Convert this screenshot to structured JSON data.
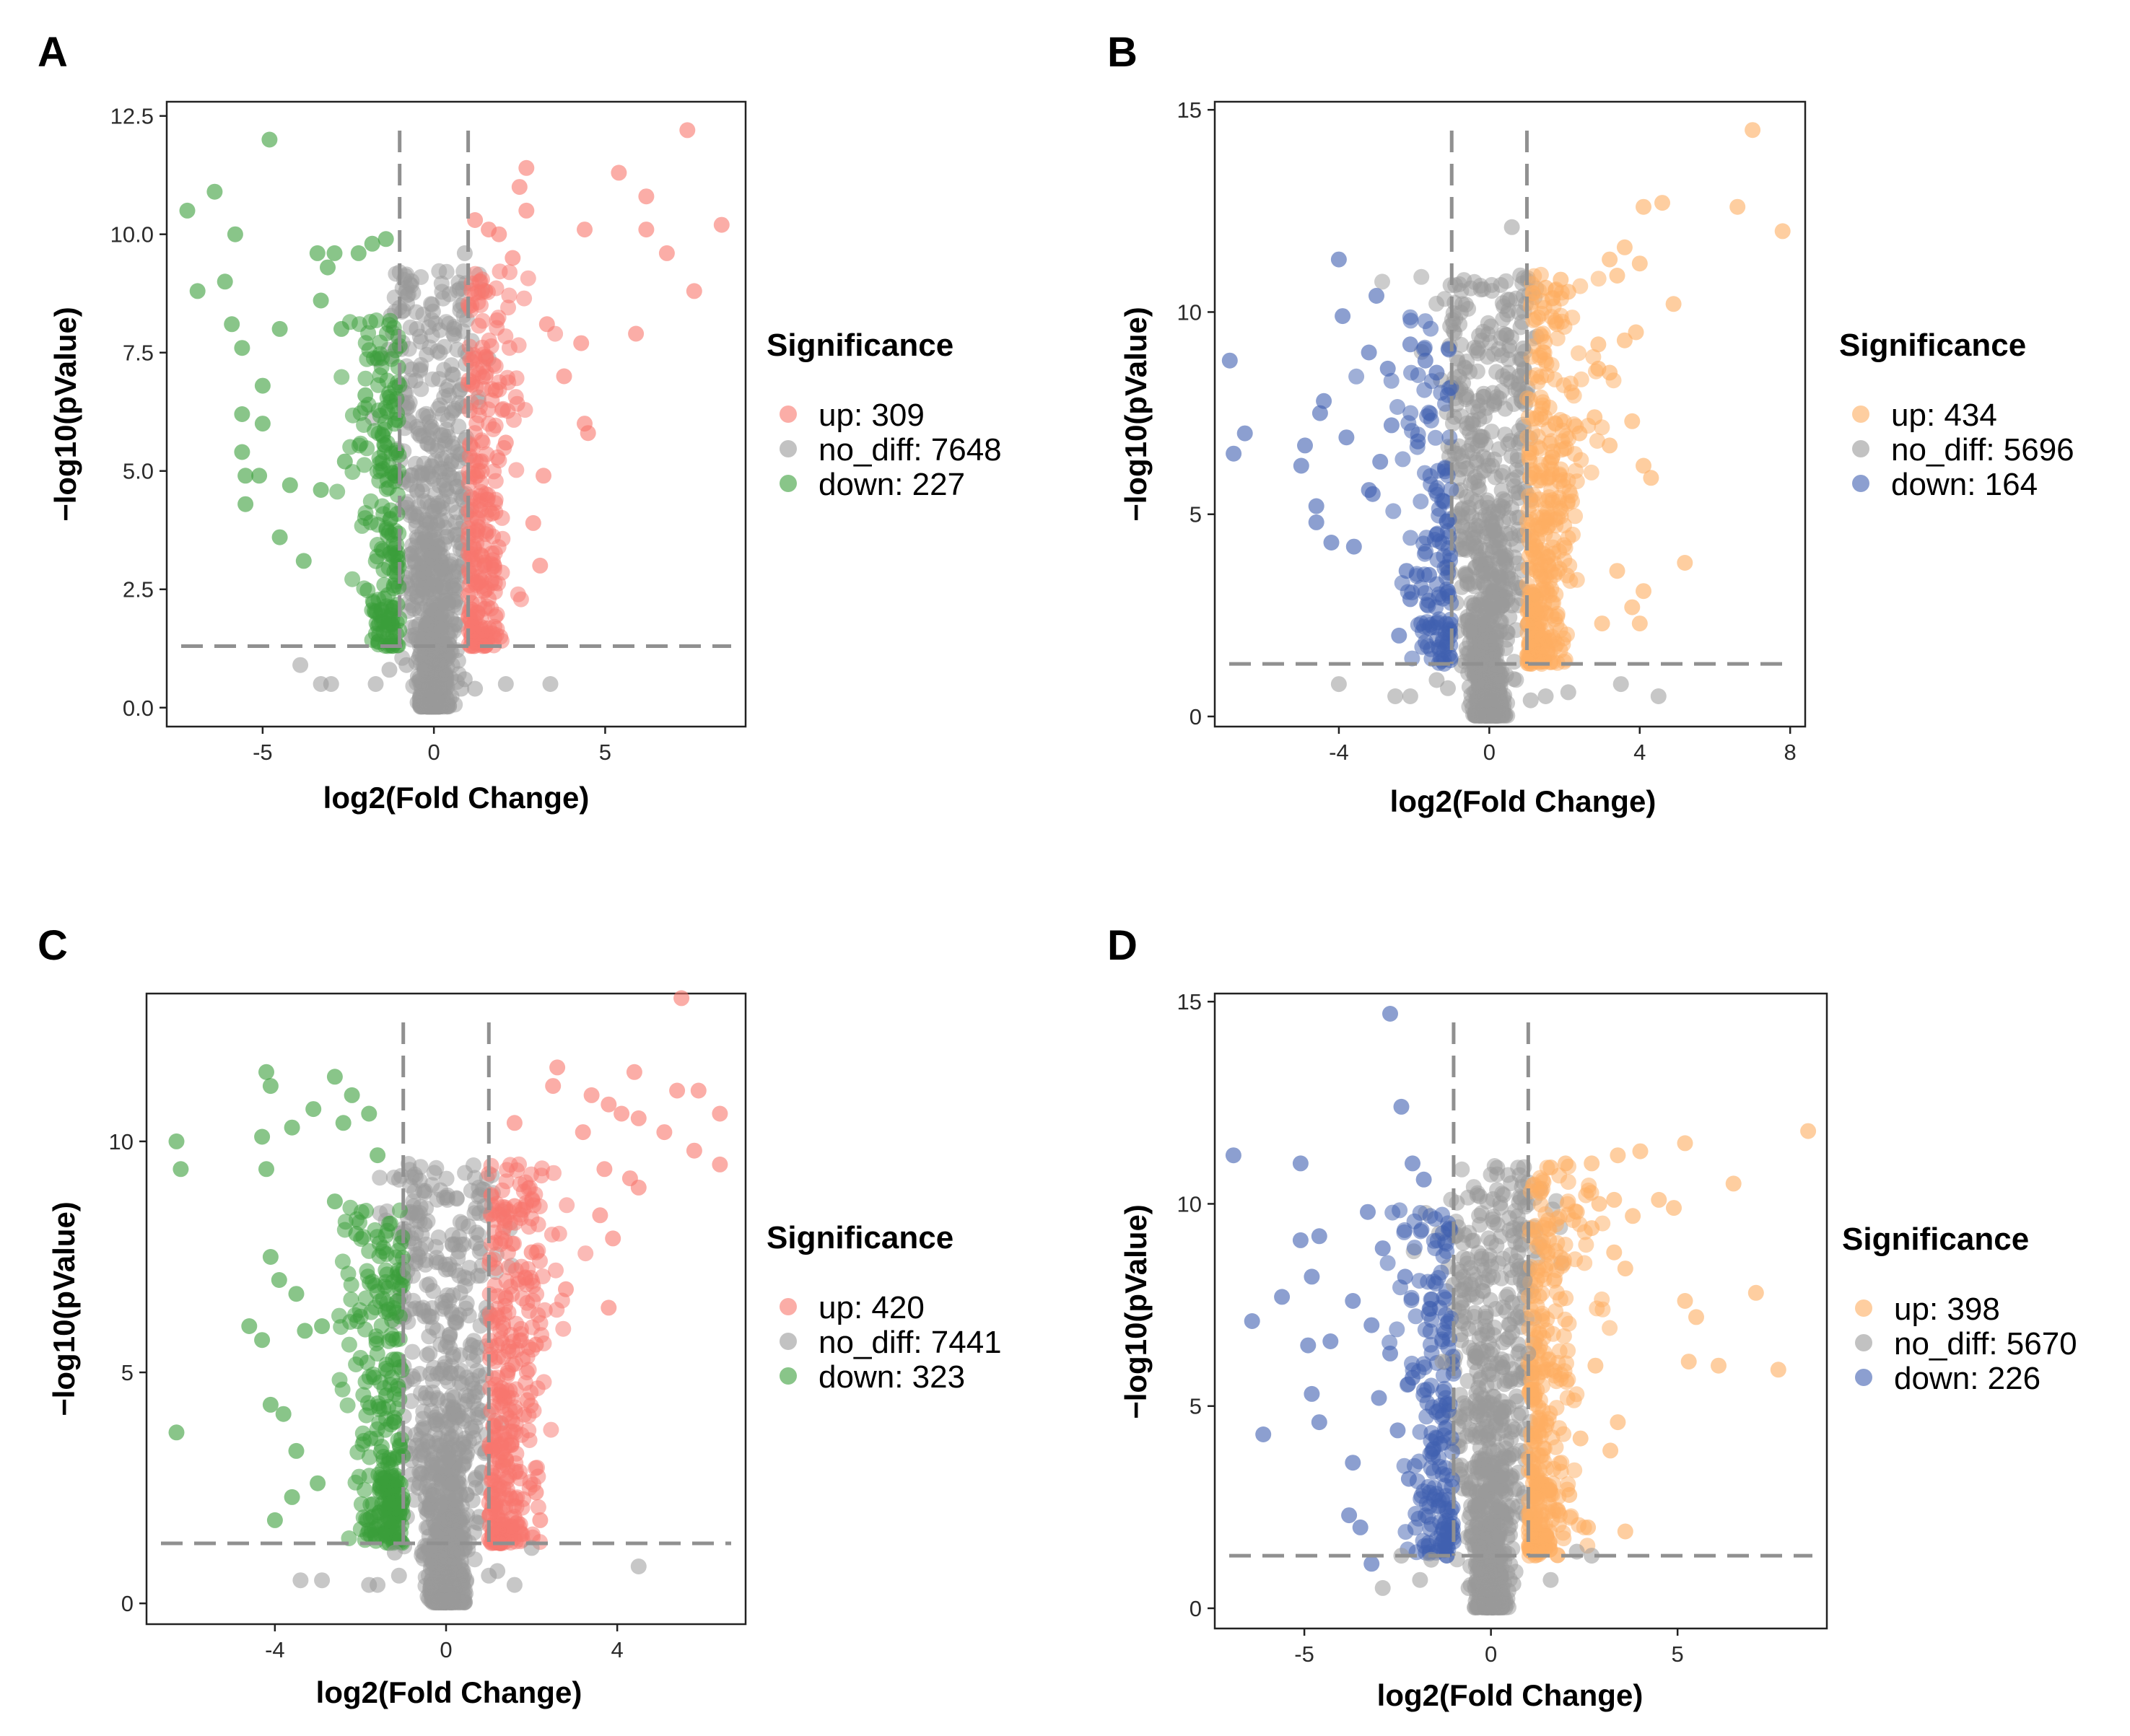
{
  "figure": {
    "panels": [
      {
        "letter": "A",
        "legend_title": "Significance",
        "legend_items": [
          "up: 309",
          "no_diff: 7648",
          "down: 227"
        ]
      },
      {
        "letter": "B",
        "legend_title": "Significance",
        "legend_items": [
          "up: 434",
          "no_diff: 5696",
          "down: 164"
        ]
      },
      {
        "letter": "C",
        "legend_title": "Significance",
        "legend_items": [
          "up: 420",
          "no_diff: 7441",
          "down: 323"
        ]
      },
      {
        "letter": "D",
        "legend_title": "Significance",
        "legend_items": [
          "up: 398",
          "no_diff: 5670",
          "down: 226"
        ]
      }
    ]
  },
  "chart_data": [
    {
      "panel": "A",
      "type": "scatter",
      "xlabel": "log2(Fold Change)",
      "ylabel": "−log10(pValue)",
      "xlim": [
        -7.8,
        9.1
      ],
      "ylim": [
        -0.4,
        12.8
      ],
      "xticks": [
        -5,
        0,
        5
      ],
      "xtick_labels": [
        "-5",
        "0",
        "5"
      ],
      "yticks": [
        0,
        2.5,
        5,
        7.5,
        10,
        12.5
      ],
      "ytick_labels": [
        "0.0",
        "2.5",
        "5.0",
        "7.5",
        "10.0",
        "12.5"
      ],
      "fc_threshold": 1,
      "p_threshold": 1.3,
      "grid": false,
      "legend_position": "right",
      "colors": {
        "up": "#f8766d",
        "no_diff": "#999999",
        "down": "#3a9e3a"
      },
      "counts": {
        "up": 309,
        "no_diff": 7648,
        "down": 227
      },
      "up_points": [
        [
          1.2,
          10.3
        ],
        [
          1.6,
          10.1
        ],
        [
          1.9,
          10.0
        ],
        [
          2.3,
          9.5
        ],
        [
          2.7,
          11.4
        ],
        [
          2.5,
          11.0
        ],
        [
          2.7,
          10.5
        ],
        [
          5.4,
          11.3
        ],
        [
          6.2,
          10.8
        ],
        [
          7.4,
          12.2
        ],
        [
          6.2,
          10.1
        ],
        [
          6.8,
          9.6
        ],
        [
          8.4,
          10.2
        ],
        [
          7.6,
          8.8
        ],
        [
          5.9,
          7.9
        ],
        [
          4.4,
          10.1
        ],
        [
          4.3,
          7.7
        ],
        [
          3.8,
          7.0
        ],
        [
          3.3,
          8.1
        ],
        [
          4.4,
          6.0
        ],
        [
          4.5,
          5.8
        ],
        [
          3.2,
          4.9
        ],
        [
          2.9,
          3.9
        ],
        [
          3.1,
          3.0
        ],
        [
          1.4,
          3.2
        ],
        [
          1.8,
          6.7
        ],
        [
          1.5,
          8.8
        ],
        [
          2.1,
          5.6
        ],
        [
          1.3,
          5.0
        ],
        [
          1.7,
          4.1
        ]
      ],
      "down_points": [
        [
          -4.8,
          12.0
        ],
        [
          -6.4,
          10.9
        ],
        [
          -7.2,
          10.5
        ],
        [
          -6.9,
          8.8
        ],
        [
          -6.1,
          9.0
        ],
        [
          -5.9,
          8.1
        ],
        [
          -5.8,
          10.0
        ],
        [
          -5.6,
          7.6
        ],
        [
          -4.5,
          8.0
        ],
        [
          -5.0,
          6.8
        ],
        [
          -5.6,
          6.2
        ],
        [
          -5.0,
          6.0
        ],
        [
          -5.6,
          5.4
        ],
        [
          -5.5,
          4.9
        ],
        [
          -5.1,
          4.9
        ],
        [
          -5.5,
          4.3
        ],
        [
          -4.2,
          4.7
        ],
        [
          -4.5,
          3.6
        ],
        [
          -3.8,
          3.1
        ],
        [
          -3.3,
          4.6
        ],
        [
          -3.4,
          9.6
        ],
        [
          -2.9,
          9.6
        ],
        [
          -2.2,
          9.6
        ],
        [
          -1.8,
          9.8
        ],
        [
          -1.4,
          9.9
        ],
        [
          -3.1,
          9.3
        ],
        [
          -3.3,
          8.6
        ],
        [
          -2.7,
          8.0
        ],
        [
          -2.0,
          6.6
        ],
        [
          -2.6,
          5.2
        ]
      ],
      "nodiff_points": [
        [
          -3.3,
          0.5
        ],
        [
          -3.9,
          0.9
        ],
        [
          -3.0,
          0.5
        ],
        [
          3.4,
          0.5
        ],
        [
          2.1,
          0.5
        ],
        [
          -1.7,
          0.5
        ],
        [
          -1.3,
          0.8
        ],
        [
          0.9,
          9.6
        ],
        [
          0.6,
          8.0
        ],
        [
          -0.5,
          8.0
        ],
        [
          1.2,
          0.4
        ],
        [
          0.8,
          0.4
        ],
        [
          0.9,
          0.6
        ],
        [
          -0.8,
          0.9
        ]
      ]
    },
    {
      "panel": "B",
      "type": "scatter",
      "xlabel": "log2(Fold Change)",
      "ylabel": "−log10(pValue)",
      "xlim": [
        -7.3,
        8.4
      ],
      "ylim": [
        -0.25,
        15.2
      ],
      "xticks": [
        -4,
        0,
        4,
        8
      ],
      "xtick_labels": [
        "-4",
        "0",
        "4",
        "8"
      ],
      "yticks": [
        0,
        5,
        10,
        15
      ],
      "ytick_labels": [
        "0",
        "5",
        "10",
        "15"
      ],
      "fc_threshold": 1,
      "p_threshold": 1.3,
      "grid": false,
      "legend_position": "right",
      "colors": {
        "up": "#fdae61",
        "no_diff": "#999999",
        "down": "#3f5fb0"
      },
      "counts": {
        "up": 434,
        "no_diff": 5696,
        "down": 164
      },
      "up_points": [
        [
          7.0,
          14.5
        ],
        [
          7.8,
          12.0
        ],
        [
          6.6,
          12.6
        ],
        [
          4.6,
          12.7
        ],
        [
          4.1,
          12.6
        ],
        [
          3.6,
          11.6
        ],
        [
          3.2,
          11.3
        ],
        [
          4.0,
          11.2
        ],
        [
          3.4,
          10.9
        ],
        [
          4.9,
          10.2
        ],
        [
          3.9,
          9.5
        ],
        [
          3.6,
          9.3
        ],
        [
          2.9,
          9.2
        ],
        [
          3.2,
          8.5
        ],
        [
          2.8,
          7.4
        ],
        [
          3.8,
          7.3
        ],
        [
          3.2,
          6.7
        ],
        [
          4.1,
          6.2
        ],
        [
          4.3,
          5.9
        ],
        [
          5.2,
          3.8
        ],
        [
          4.1,
          3.1
        ],
        [
          3.8,
          2.7
        ],
        [
          4.0,
          2.3
        ],
        [
          3.4,
          3.6
        ],
        [
          3.0,
          2.3
        ],
        [
          1.9,
          10.8
        ],
        [
          1.5,
          10.6
        ],
        [
          2.1,
          10.5
        ],
        [
          2.9,
          8.6
        ],
        [
          2.4,
          7.0
        ]
      ],
      "down_points": [
        [
          -6.9,
          8.8
        ],
        [
          -6.5,
          7.0
        ],
        [
          -6.8,
          6.5
        ],
        [
          -5.0,
          6.2
        ],
        [
          -4.6,
          5.2
        ],
        [
          -4.6,
          4.8
        ],
        [
          -4.9,
          6.7
        ],
        [
          -4.4,
          7.8
        ],
        [
          -4.0,
          11.3
        ],
        [
          -3.0,
          10.4
        ],
        [
          -3.9,
          9.9
        ],
        [
          -3.2,
          9.0
        ],
        [
          -2.7,
          8.6
        ],
        [
          -2.1,
          9.2
        ],
        [
          -1.7,
          8.8
        ],
        [
          -1.4,
          8.5
        ],
        [
          -4.5,
          7.5
        ],
        [
          -3.8,
          6.9
        ],
        [
          -3.2,
          5.6
        ],
        [
          -4.2,
          4.3
        ],
        [
          -3.6,
          4.2
        ],
        [
          -2.2,
          3.6
        ],
        [
          -2.1,
          2.9
        ],
        [
          -2.4,
          2.0
        ],
        [
          -1.6,
          3.5
        ],
        [
          -1.4,
          4.5
        ],
        [
          -2.6,
          7.2
        ],
        [
          -2.9,
          6.3
        ],
        [
          -3.1,
          5.5
        ],
        [
          -1.9,
          6.8
        ]
      ],
      "nodiff_points": [
        [
          -4.0,
          0.8
        ],
        [
          -2.5,
          0.5
        ],
        [
          -1.4,
          0.9
        ],
        [
          -2.1,
          0.5
        ],
        [
          4.5,
          0.5
        ],
        [
          3.5,
          0.8
        ],
        [
          1.5,
          0.5
        ],
        [
          2.1,
          0.6
        ],
        [
          0.6,
          12.1
        ],
        [
          0.9,
          9.1
        ],
        [
          0.5,
          8.5
        ],
        [
          -0.8,
          8.4
        ],
        [
          -0.6,
          7.9
        ],
        [
          1.1,
          0.4
        ],
        [
          -1.1,
          0.7
        ]
      ]
    },
    {
      "panel": "C",
      "type": "scatter",
      "xlabel": "log2(Fold Change)",
      "ylabel": "−log10(pValue)",
      "xlim": [
        -7.0,
        7.0
      ],
      "ylim": [
        -0.45,
        13.2
      ],
      "xticks": [
        -4,
        0,
        4
      ],
      "xtick_labels": [
        "-4",
        "0",
        "4"
      ],
      "yticks": [
        0,
        5,
        10
      ],
      "ytick_labels": [
        "0",
        "5",
        "10"
      ],
      "fc_threshold": 1,
      "p_threshold": 1.3,
      "grid": false,
      "legend_position": "right",
      "colors": {
        "up": "#f8766d",
        "no_diff": "#999999",
        "down": "#3a9e3a"
      },
      "counts": {
        "up": 420,
        "no_diff": 7441,
        "down": 323
      },
      "up_points": [
        [
          5.5,
          13.1
        ],
        [
          4.4,
          11.5
        ],
        [
          5.4,
          11.1
        ],
        [
          5.9,
          11.1
        ],
        [
          6.4,
          10.6
        ],
        [
          3.4,
          11.0
        ],
        [
          3.8,
          10.8
        ],
        [
          4.1,
          10.6
        ],
        [
          4.5,
          10.5
        ],
        [
          5.1,
          10.2
        ],
        [
          5.8,
          9.8
        ],
        [
          6.4,
          9.5
        ],
        [
          2.6,
          11.6
        ],
        [
          2.5,
          11.2
        ],
        [
          1.6,
          10.4
        ],
        [
          3.2,
          10.2
        ],
        [
          3.7,
          9.4
        ],
        [
          4.3,
          9.2
        ],
        [
          4.5,
          9.0
        ],
        [
          3.6,
          8.4
        ],
        [
          3.9,
          7.9
        ],
        [
          3.8,
          6.4
        ],
        [
          2.8,
          6.8
        ],
        [
          2.1,
          5.6
        ],
        [
          1.9,
          4.4
        ],
        [
          1.4,
          3.1
        ],
        [
          2.2,
          1.8
        ],
        [
          2.1,
          2.4
        ],
        [
          1.6,
          8.6
        ],
        [
          2.0,
          7.6
        ]
      ],
      "down_points": [
        [
          -6.3,
          10.0
        ],
        [
          -6.2,
          9.4
        ],
        [
          -6.3,
          3.7
        ],
        [
          -4.2,
          11.5
        ],
        [
          -4.1,
          11.2
        ],
        [
          -4.2,
          9.4
        ],
        [
          -4.3,
          10.1
        ],
        [
          -3.1,
          10.7
        ],
        [
          -2.6,
          11.4
        ],
        [
          -3.6,
          10.3
        ],
        [
          -2.2,
          11.0
        ],
        [
          -4.1,
          7.5
        ],
        [
          -3.9,
          7.0
        ],
        [
          -4.6,
          6.0
        ],
        [
          -4.3,
          5.7
        ],
        [
          -3.5,
          6.7
        ],
        [
          -3.3,
          5.9
        ],
        [
          -4.1,
          4.3
        ],
        [
          -3.8,
          4.1
        ],
        [
          -3.5,
          3.3
        ],
        [
          -3.0,
          2.6
        ],
        [
          -3.6,
          2.3
        ],
        [
          -4.0,
          1.8
        ],
        [
          -1.8,
          10.6
        ],
        [
          -2.4,
          10.4
        ],
        [
          -1.6,
          9.7
        ],
        [
          -2.6,
          8.7
        ],
        [
          -2.1,
          8.0
        ],
        [
          -2.9,
          6.0
        ],
        [
          -1.4,
          4.5
        ]
      ],
      "nodiff_points": [
        [
          -3.4,
          0.5
        ],
        [
          -2.9,
          0.5
        ],
        [
          -1.8,
          0.4
        ],
        [
          -1.1,
          0.6
        ],
        [
          -1.6,
          0.4
        ],
        [
          4.5,
          0.8
        ],
        [
          1.6,
          0.4
        ],
        [
          2.0,
          1.2
        ],
        [
          1.2,
          0.7
        ],
        [
          0.9,
          8.6
        ],
        [
          0.7,
          7.8
        ],
        [
          -0.5,
          8.2
        ],
        [
          -0.9,
          7.2
        ],
        [
          -1.2,
          1.1
        ],
        [
          1.0,
          0.6
        ]
      ]
    },
    {
      "panel": "D",
      "type": "scatter",
      "xlabel": "log2(Fold Change)",
      "ylabel": "−log10(pValue)",
      "xlim": [
        -7.4,
        9.0
      ],
      "ylim": [
        -0.5,
        15.2
      ],
      "xticks": [
        -5,
        0,
        5
      ],
      "xtick_labels": [
        "-5",
        "0",
        "5"
      ],
      "yticks": [
        0,
        5,
        10,
        15
      ],
      "ytick_labels": [
        "0",
        "5",
        "10",
        "15"
      ],
      "fc_threshold": 1,
      "p_threshold": 1.3,
      "grid": false,
      "legend_position": "right",
      "colors": {
        "up": "#fdae61",
        "no_diff": "#999999",
        "down": "#3f5fb0"
      },
      "counts": {
        "up": 398,
        "no_diff": 5670,
        "down": 226
      },
      "up_points": [
        [
          8.5,
          11.8
        ],
        [
          5.2,
          11.5
        ],
        [
          4.0,
          11.3
        ],
        [
          3.4,
          11.2
        ],
        [
          2.7,
          11.0
        ],
        [
          2.0,
          11.0
        ],
        [
          1.6,
          10.9
        ],
        [
          6.5,
          10.5
        ],
        [
          4.5,
          10.1
        ],
        [
          4.9,
          9.9
        ],
        [
          3.8,
          9.7
        ],
        [
          3.3,
          10.1
        ],
        [
          2.9,
          10.0
        ],
        [
          2.3,
          9.8
        ],
        [
          2.7,
          9.4
        ],
        [
          3.3,
          8.8
        ],
        [
          3.6,
          8.4
        ],
        [
          5.2,
          7.6
        ],
        [
          5.5,
          7.2
        ],
        [
          7.1,
          7.8
        ],
        [
          5.3,
          6.1
        ],
        [
          6.1,
          6.0
        ],
        [
          7.7,
          5.9
        ],
        [
          3.4,
          4.6
        ],
        [
          3.2,
          3.9
        ],
        [
          3.6,
          1.9
        ],
        [
          2.6,
          2.0
        ],
        [
          2.1,
          2.8
        ],
        [
          2.4,
          4.2
        ],
        [
          2.8,
          6.0
        ]
      ],
      "down_points": [
        [
          -6.9,
          11.2
        ],
        [
          -6.4,
          7.1
        ],
        [
          -6.1,
          4.3
        ],
        [
          -5.1,
          11.0
        ],
        [
          -5.1,
          9.1
        ],
        [
          -4.6,
          9.2
        ],
        [
          -4.8,
          8.2
        ],
        [
          -5.6,
          7.7
        ],
        [
          -4.9,
          6.5
        ],
        [
          -4.3,
          6.6
        ],
        [
          -4.8,
          5.3
        ],
        [
          -4.6,
          4.6
        ],
        [
          -3.7,
          3.6
        ],
        [
          -3.8,
          2.3
        ],
        [
          -3.5,
          2.0
        ],
        [
          -3.2,
          1.1
        ],
        [
          -2.7,
          14.7
        ],
        [
          -2.4,
          12.4
        ],
        [
          -2.1,
          11.0
        ],
        [
          -1.8,
          10.6
        ],
        [
          -3.3,
          9.8
        ],
        [
          -2.9,
          8.9
        ],
        [
          -3.7,
          7.6
        ],
        [
          -3.2,
          7.0
        ],
        [
          -2.3,
          8.2
        ],
        [
          -2.7,
          6.3
        ],
        [
          -2.1,
          5.7
        ],
        [
          -3.0,
          5.2
        ],
        [
          -2.5,
          4.4
        ],
        [
          -2.2,
          3.2
        ]
      ],
      "nodiff_points": [
        [
          -2.4,
          1.3
        ],
        [
          -1.6,
          1.2
        ],
        [
          -1.9,
          0.7
        ],
        [
          -2.9,
          0.5
        ],
        [
          2.3,
          1.4
        ],
        [
          2.7,
          1.3
        ],
        [
          1.6,
          0.7
        ],
        [
          -1.0,
          8.0
        ],
        [
          -1.3,
          6.1
        ],
        [
          0.8,
          9.0
        ],
        [
          0.9,
          8.1
        ],
        [
          1.0,
          6.3
        ],
        [
          -0.8,
          7.1
        ],
        [
          0.6,
          0.6
        ],
        [
          -0.6,
          0.5
        ]
      ]
    }
  ]
}
